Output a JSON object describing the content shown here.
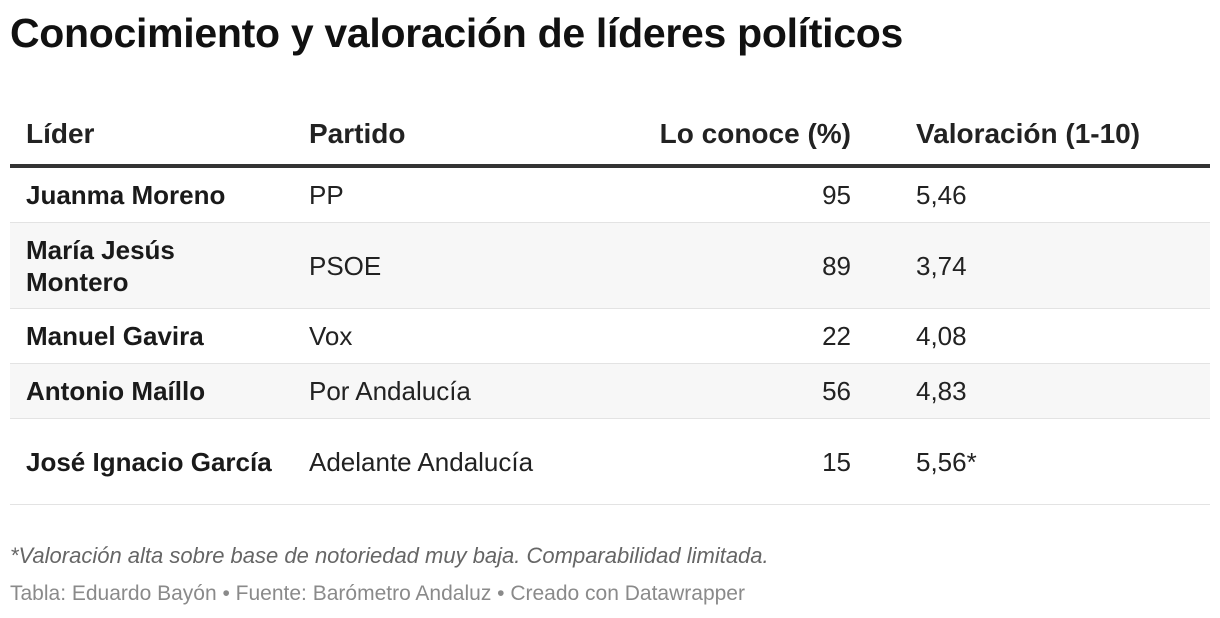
{
  "chart_data": {
    "type": "table",
    "title": "Conocimiento y valoración de líderes políticos",
    "columns": [
      "Líder",
      "Partido",
      "Lo conoce (%)",
      "Valoración (1-10)"
    ],
    "rows": [
      {
        "lider": "Juanma Moreno",
        "partido": "PP",
        "conoce": "95",
        "valoracion": "5,46"
      },
      {
        "lider": "María Jesús Montero",
        "partido": "PSOE",
        "conoce": "89",
        "valoracion": "3,74"
      },
      {
        "lider": "Manuel Gavira",
        "partido": "Vox",
        "conoce": "22",
        "valoracion": "4,08"
      },
      {
        "lider": "Antonio Maíllo",
        "partido": "Por Andalucía",
        "conoce": "56",
        "valoracion": "4,83"
      },
      {
        "lider": "José Ignacio García",
        "partido": "Adelante Andalucía",
        "conoce": "15",
        "valoracion": "5,56*"
      }
    ],
    "note": "*Valoración alta sobre base de notoriedad muy baja. Comparabilidad limitada.",
    "footer": "Tabla: Eduardo Bayón • Fuente: Barómetro Andaluz • Creado con Datawrapper"
  }
}
